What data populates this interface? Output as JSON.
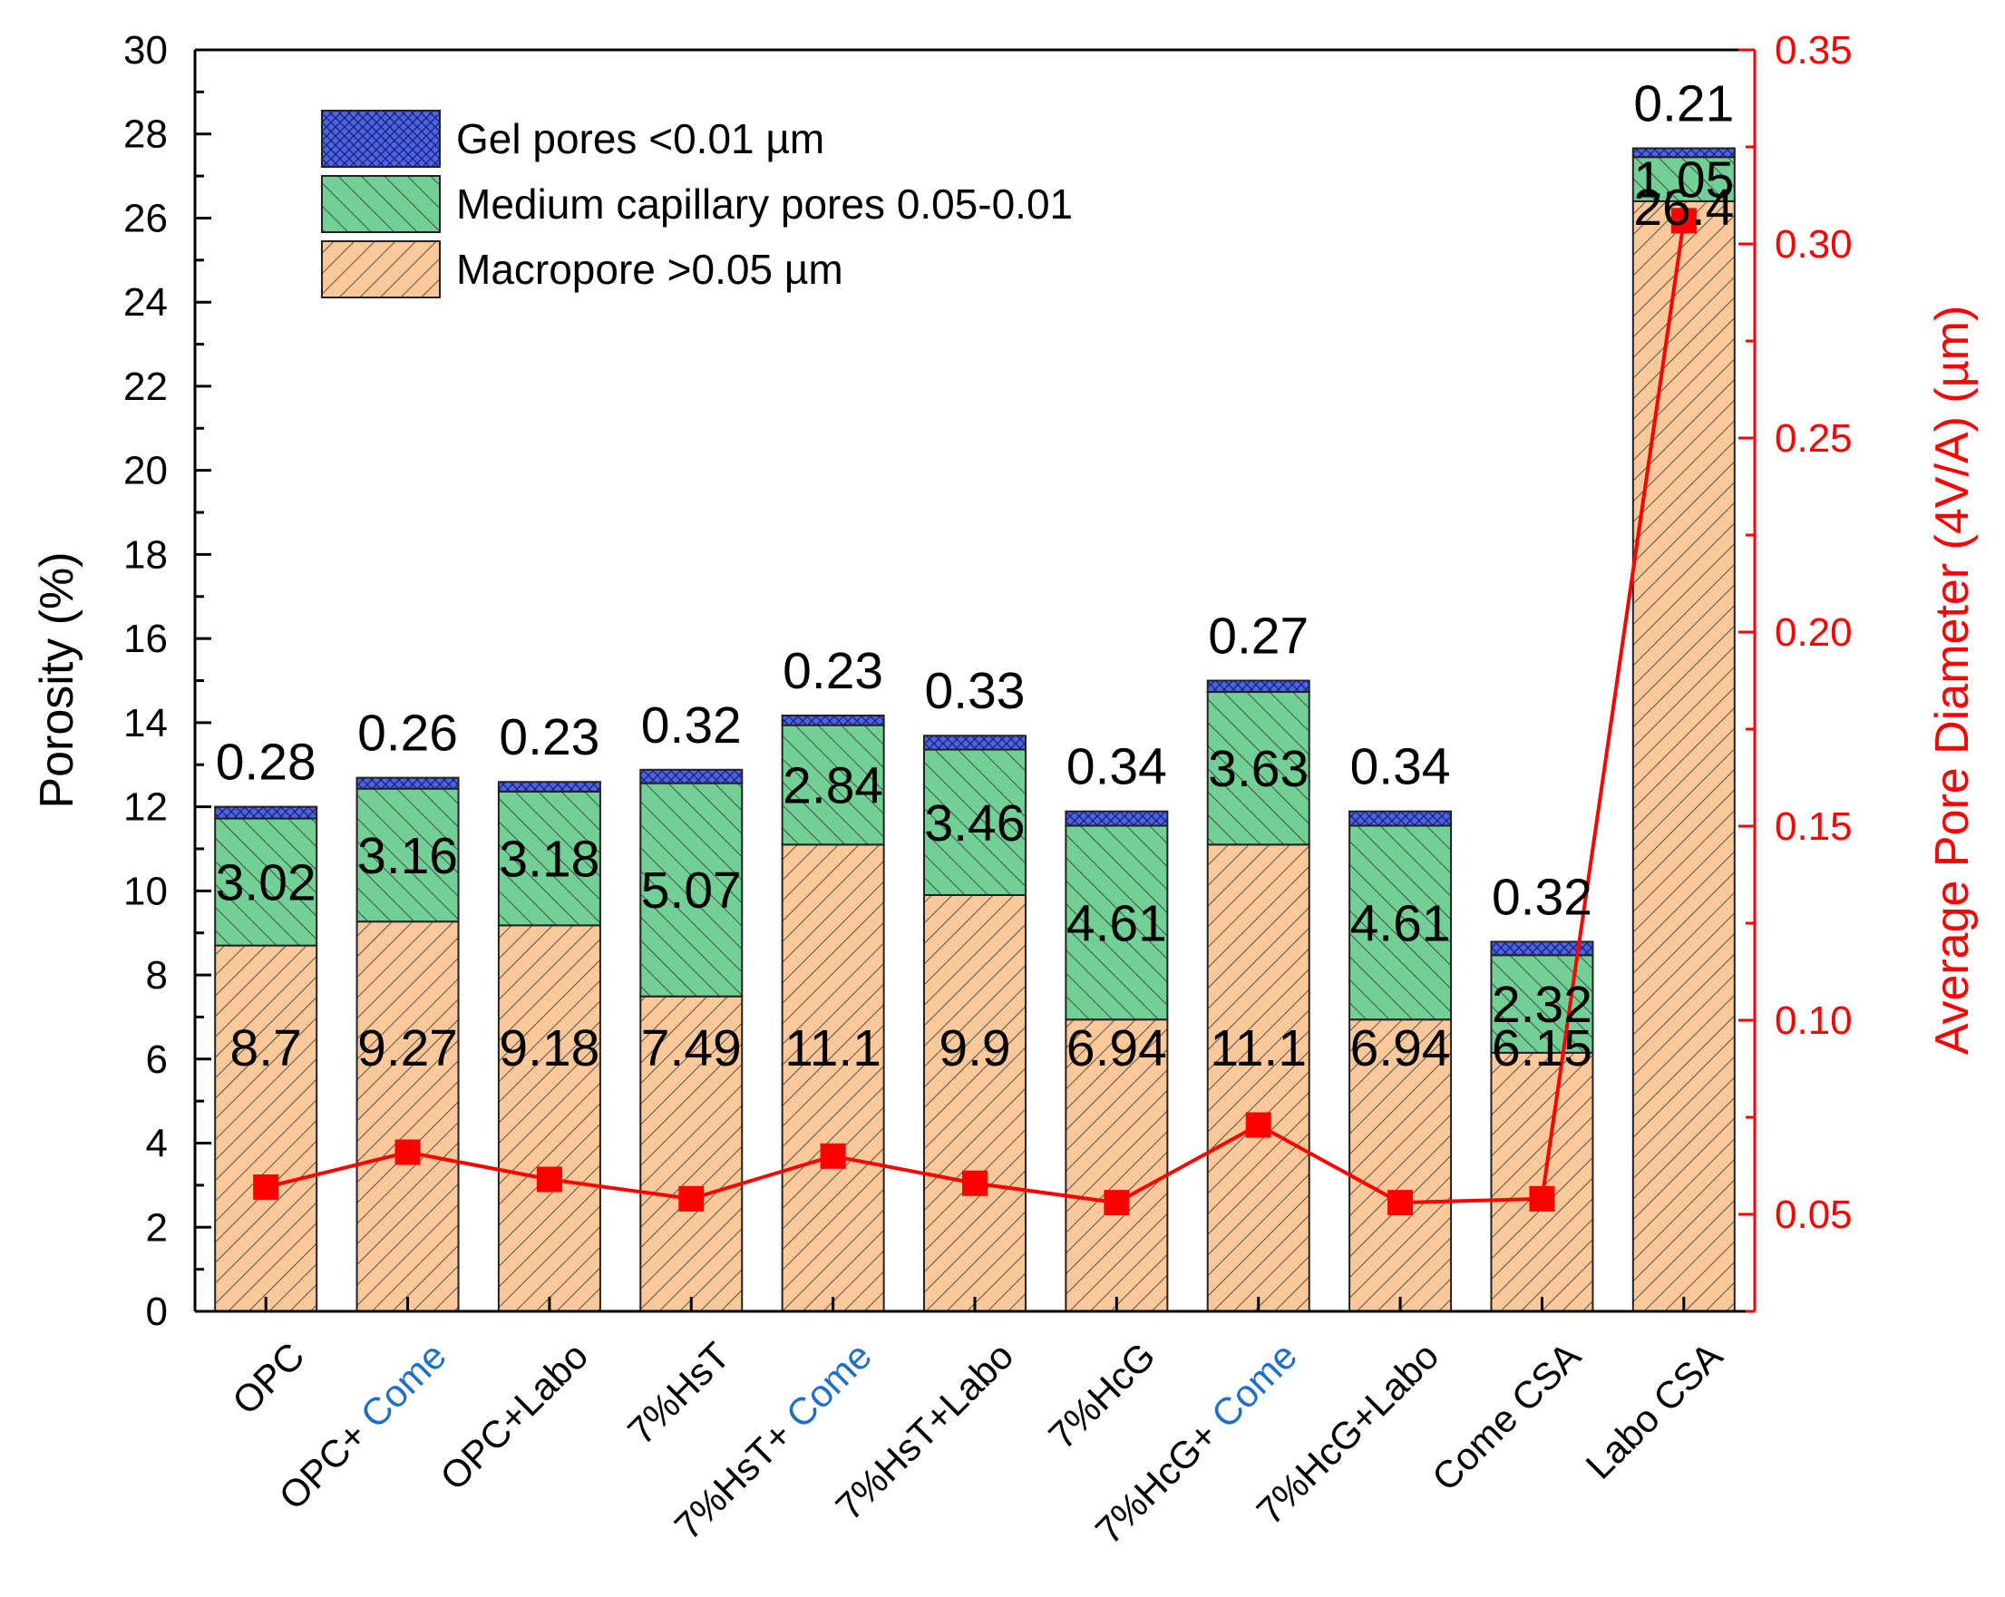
{
  "chart_data": {
    "type": "bar",
    "stacked": true,
    "categories": [
      {
        "text": "OPC",
        "highlight": ""
      },
      {
        "text": "OPC+ ",
        "highlight": "Come"
      },
      {
        "text": "OPC+Labo",
        "highlight": ""
      },
      {
        "text": "7%HsT",
        "highlight": ""
      },
      {
        "text": "7%HsT+ ",
        "highlight": "Come"
      },
      {
        "text": "7%HsT+Labo",
        "highlight": ""
      },
      {
        "text": "7%HcG",
        "highlight": ""
      },
      {
        "text": "7%HcG+ ",
        "highlight": "Come"
      },
      {
        "text": "7%HcG+Labo",
        "highlight": ""
      },
      {
        "text": "Come CSA",
        "highlight": ""
      },
      {
        "text": "Labo CSA",
        "highlight": ""
      }
    ],
    "series": [
      {
        "name": "Macropore >0.05 µm",
        "color": "#fbc89a",
        "values": [
          8.7,
          9.27,
          9.18,
          7.49,
          11.1,
          9.9,
          6.94,
          11.1,
          6.94,
          6.15,
          26.4
        ],
        "labels": [
          "8.7",
          "9.27",
          "9.18",
          "7.49",
          "11.1",
          "9.9",
          "6.94",
          "11.1",
          "6.94",
          "6.15",
          "26.4"
        ]
      },
      {
        "name": "Medium capillary pores 0.05-0.01",
        "color": "#72cf95",
        "values": [
          3.02,
          3.16,
          3.18,
          5.07,
          2.84,
          3.46,
          4.61,
          3.63,
          4.61,
          2.32,
          1.05
        ],
        "labels": [
          "3.02",
          "3.16",
          "3.18",
          "5.07",
          "2.84",
          "3.46",
          "4.61",
          "3.63",
          "4.61",
          "2.32",
          "1.05"
        ]
      },
      {
        "name": "Gel pores <0.01 µm",
        "color": "#4d63e6",
        "values": [
          0.28,
          0.26,
          0.23,
          0.32,
          0.23,
          0.33,
          0.34,
          0.27,
          0.34,
          0.32,
          0.21
        ],
        "labels": [
          "0.28",
          "0.26",
          "0.23",
          "0.32",
          "0.23",
          "0.33",
          "0.34",
          "0.27",
          "0.34",
          "0.32",
          "0.21"
        ]
      }
    ],
    "line_series": {
      "name": "Average Pore Diameter (4V/A)",
      "color": "#ff0000",
      "axis": "right",
      "values": [
        0.057,
        0.066,
        0.059,
        0.054,
        0.065,
        0.058,
        0.053,
        0.073,
        0.053,
        0.054,
        0.306
      ]
    },
    "ylabel": "Porosity (%)",
    "ylabel_right": "Average Pore Diameter (4V/A) (µm)",
    "ylim": [
      0,
      30
    ],
    "ylim_right": [
      0.025,
      0.35
    ],
    "yticks": [
      "0",
      "2",
      "4",
      "6",
      "8",
      "10",
      "12",
      "14",
      "16",
      "18",
      "20",
      "22",
      "24",
      "26",
      "28",
      "30"
    ],
    "yticks_right": [
      "0.05",
      "0.10",
      "0.15",
      "0.20",
      "0.25",
      "0.30",
      "0.35"
    ],
    "legend_position": "top-left"
  }
}
